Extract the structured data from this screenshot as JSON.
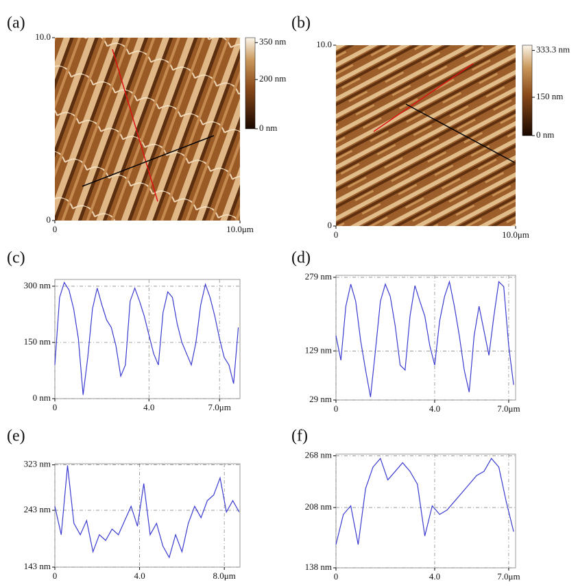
{
  "chart_data": [
    {
      "type": "image",
      "panel": "(a)",
      "xlim": [
        0,
        10
      ],
      "ylim": [
        0,
        10
      ],
      "xticks": [
        0,
        {
          "value": 10,
          "label": "10.0μm"
        }
      ],
      "yticks": [
        0,
        {
          "value": 10,
          "label": "10.0"
        }
      ],
      "colorbar": {
        "lim": [
          0,
          370
        ],
        "ticks": [
          {
            "value": 350,
            "label": "350 nm"
          },
          {
            "value": 200,
            "label": "200 nm"
          },
          {
            "value": 0,
            "label": "0 nm"
          }
        ]
      }
    },
    {
      "type": "image",
      "panel": "(b)",
      "xlim": [
        0,
        10
      ],
      "ylim": [
        0,
        10
      ],
      "xticks": [
        0,
        {
          "value": 10,
          "label": "10.0μm"
        }
      ],
      "yticks": [
        0,
        {
          "value": 10,
          "label": "10.0"
        }
      ],
      "colorbar": {
        "lim": [
          0,
          353.6
        ],
        "ticks": [
          {
            "value": 333.3,
            "label": "333.3 nm"
          },
          {
            "value": 150,
            "label": "150 nm"
          },
          {
            "value": 0,
            "label": "0 nm"
          }
        ]
      }
    },
    {
      "type": "line",
      "panel": "(c)",
      "color": "#3a3ad0",
      "grid": true,
      "xlim": [
        0,
        7.87
      ],
      "ylim": [
        0,
        318
      ],
      "xticks": [
        0,
        {
          "value": 4,
          "label": "4.0"
        },
        {
          "value": 7,
          "label": "7.0μm"
        }
      ],
      "yticks": [
        {
          "value": 0,
          "label": "0 nm"
        },
        {
          "value": 150,
          "label": "150 nm"
        },
        {
          "value": 300,
          "label": "300 nm"
        }
      ],
      "x": [
        0,
        0.2,
        0.4,
        0.6,
        0.8,
        1.0,
        1.2,
        1.4,
        1.6,
        1.8,
        2.0,
        2.2,
        2.4,
        2.6,
        2.8,
        3.0,
        3.2,
        3.4,
        3.6,
        3.8,
        4.0,
        4.2,
        4.4,
        4.6,
        4.8,
        5.0,
        5.2,
        5.4,
        5.6,
        5.8,
        6.0,
        6.2,
        6.4,
        6.6,
        6.8,
        7.0,
        7.2,
        7.4,
        7.6,
        7.8
      ],
      "values": [
        90,
        270,
        310,
        290,
        240,
        160,
        10,
        110,
        240,
        295,
        250,
        210,
        190,
        140,
        60,
        90,
        260,
        295,
        260,
        220,
        170,
        120,
        90,
        230,
        285,
        270,
        200,
        150,
        120,
        90,
        150,
        250,
        305,
        270,
        220,
        160,
        110,
        90,
        40,
        190
      ]
    },
    {
      "type": "line",
      "panel": "(d)",
      "color": "#3a3ad0",
      "grid": true,
      "xlim": [
        0,
        7.28
      ],
      "ylim": [
        29,
        283
      ],
      "xticks": [
        0,
        {
          "value": 4,
          "label": "4.0"
        },
        {
          "value": 7,
          "label": "7.0μm"
        }
      ],
      "yticks": [
        {
          "value": 29,
          "label": "29 nm"
        },
        {
          "value": 129,
          "label": "129 nm"
        },
        {
          "value": 279,
          "label": "279 nm"
        }
      ],
      "x": [
        0,
        0.2,
        0.4,
        0.6,
        0.8,
        1.0,
        1.2,
        1.4,
        1.6,
        1.8,
        2.0,
        2.2,
        2.4,
        2.6,
        2.8,
        3.0,
        3.2,
        3.4,
        3.6,
        3.8,
        4.0,
        4.2,
        4.4,
        4.6,
        4.8,
        5.0,
        5.2,
        5.4,
        5.6,
        5.8,
        6.0,
        6.2,
        6.4,
        6.6,
        6.8,
        7.0,
        7.2
      ],
      "values": [
        160,
        110,
        220,
        265,
        230,
        150,
        90,
        35,
        130,
        230,
        265,
        240,
        180,
        100,
        90,
        200,
        262,
        230,
        200,
        140,
        100,
        190,
        240,
        270,
        220,
        160,
        90,
        45,
        160,
        220,
        170,
        120,
        200,
        270,
        260,
        140,
        60
      ]
    },
    {
      "type": "line",
      "panel": "(e)",
      "color": "#3a3ad0",
      "grid": true,
      "xlim": [
        0,
        8.74
      ],
      "ylim": [
        143,
        325
      ],
      "xticks": [
        0,
        {
          "value": 4,
          "label": "4.0"
        },
        {
          "value": 8,
          "label": "8.0μm"
        }
      ],
      "yticks": [
        {
          "value": 143,
          "label": "143 nm"
        },
        {
          "value": 243,
          "label": "243 nm"
        },
        {
          "value": 323,
          "label": "323 nm"
        }
      ],
      "x": [
        0,
        0.3,
        0.6,
        0.9,
        1.2,
        1.5,
        1.8,
        2.1,
        2.4,
        2.7,
        3.0,
        3.3,
        3.6,
        3.9,
        4.2,
        4.5,
        4.8,
        5.1,
        5.4,
        5.7,
        6.0,
        6.3,
        6.6,
        6.9,
        7.2,
        7.5,
        7.8,
        8.1,
        8.4,
        8.7
      ],
      "values": [
        250,
        200,
        322,
        220,
        200,
        225,
        170,
        200,
        190,
        210,
        200,
        225,
        250,
        215,
        290,
        200,
        220,
        180,
        160,
        200,
        170,
        220,
        250,
        230,
        260,
        270,
        300,
        240,
        260,
        240
      ]
    },
    {
      "type": "line",
      "panel": "(f)",
      "color": "#3a3ad0",
      "grid": true,
      "xlim": [
        0,
        7.28
      ],
      "ylim": [
        138,
        270
      ],
      "xticks": [
        0,
        {
          "value": 4,
          "label": "4.0"
        },
        {
          "value": 7,
          "label": "7.0μm"
        }
      ],
      "yticks": [
        {
          "value": 138,
          "label": "138 nm"
        },
        {
          "value": 208,
          "label": "208 nm"
        },
        {
          "value": 268,
          "label": "268 nm"
        }
      ],
      "x": [
        0,
        0.3,
        0.6,
        0.9,
        1.2,
        1.5,
        1.8,
        2.1,
        2.4,
        2.7,
        3.0,
        3.3,
        3.6,
        3.9,
        4.2,
        4.5,
        4.8,
        5.1,
        5.4,
        5.7,
        6.0,
        6.3,
        6.6,
        6.9,
        7.2
      ],
      "values": [
        165,
        200,
        210,
        165,
        230,
        255,
        265,
        240,
        250,
        260,
        250,
        235,
        175,
        210,
        200,
        205,
        215,
        225,
        235,
        245,
        250,
        265,
        255,
        215,
        180
      ]
    }
  ]
}
